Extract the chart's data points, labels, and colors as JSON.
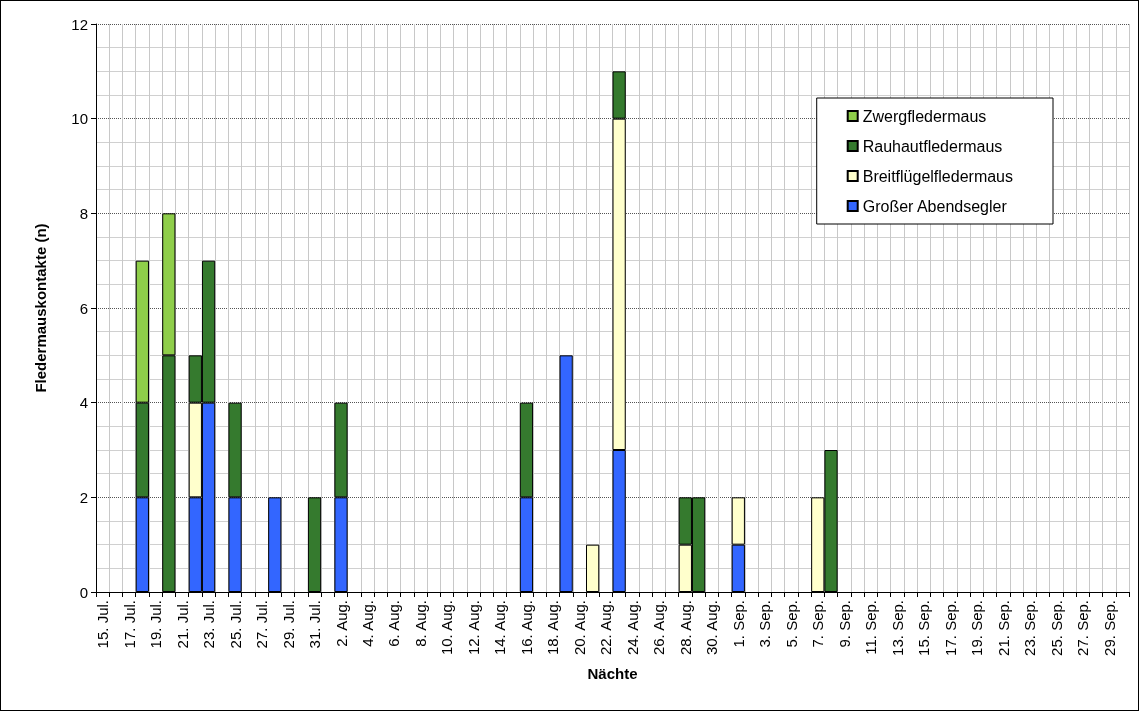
{
  "chart_data": {
    "type": "bar",
    "stacked": true,
    "xlabel": "Nächte",
    "ylabel": "Fledermauskontakte (n)",
    "categories": [
      "15. Jul.",
      null,
      "17. Jul.",
      null,
      "19. Jul.",
      null,
      "21. Jul.",
      null,
      "23. Jul.",
      null,
      "25. Jul.",
      null,
      "27. Jul.",
      null,
      "29. Jul.",
      null,
      "31. Jul.",
      null,
      "2. Aug.",
      null,
      "4. Aug.",
      null,
      "6. Aug.",
      null,
      "8. Aug.",
      null,
      "10. Aug.",
      null,
      "12. Aug.",
      null,
      "14. Aug.",
      null,
      "16. Aug.",
      null,
      "18. Aug.",
      null,
      "20. Aug.",
      null,
      "22. Aug.",
      null,
      "24. Aug.",
      null,
      "26. Aug.",
      null,
      "28. Aug.",
      null,
      "30. Aug.",
      null,
      "1. Sep.",
      null,
      "3. Sep.",
      null,
      "5. Sep.",
      null,
      "7. Sep.",
      null,
      "9. Sep.",
      null,
      "11. Sep.",
      null,
      "13. Sep.",
      null,
      "15. Sep.",
      null,
      "17. Sep.",
      null,
      "19. Sep.",
      null,
      "21. Sep.",
      null,
      "23. Sep.",
      null,
      "25. Sep.",
      null,
      "27. Sep.",
      null,
      "29. Sep.",
      null
    ],
    "series": [
      {
        "name": "Großer Abendsegler",
        "color": "#3366ff",
        "values": [
          null,
          null,
          null,
          2,
          null,
          null,
          null,
          2,
          4,
          null,
          2,
          null,
          null,
          2,
          null,
          null,
          null,
          null,
          2,
          null,
          null,
          null,
          null,
          null,
          null,
          null,
          null,
          null,
          null,
          null,
          null,
          null,
          2,
          null,
          null,
          5,
          null,
          null,
          null,
          3,
          null,
          null,
          null,
          null,
          null,
          null,
          null,
          null,
          1,
          null,
          null,
          null,
          null,
          null,
          null,
          null,
          null,
          null,
          null,
          null,
          null,
          null,
          null,
          null,
          null,
          null,
          null,
          null,
          null,
          null,
          null,
          null,
          null,
          null,
          null,
          null,
          null,
          null
        ]
      },
      {
        "name": "Breitflügelfledermaus",
        "color": "#ffffcc",
        "values": [
          null,
          null,
          null,
          null,
          null,
          null,
          null,
          2,
          null,
          null,
          null,
          null,
          null,
          null,
          null,
          null,
          null,
          null,
          null,
          null,
          null,
          null,
          null,
          null,
          null,
          null,
          null,
          null,
          null,
          null,
          null,
          null,
          null,
          null,
          null,
          null,
          null,
          1,
          null,
          7,
          null,
          null,
          null,
          null,
          1,
          null,
          null,
          null,
          1,
          null,
          null,
          null,
          null,
          null,
          2,
          null,
          null,
          null,
          null,
          null,
          null,
          null,
          null,
          null,
          null,
          null,
          null,
          null,
          null,
          null,
          null,
          null,
          null,
          null,
          null,
          null,
          null,
          null
        ]
      },
      {
        "name": "Rauhautfledermaus",
        "color": "#357a2e",
        "values": [
          null,
          null,
          null,
          2,
          null,
          5,
          null,
          1,
          3,
          null,
          2,
          null,
          null,
          null,
          null,
          null,
          2,
          null,
          2,
          null,
          null,
          null,
          null,
          null,
          null,
          null,
          null,
          null,
          null,
          null,
          null,
          null,
          2,
          null,
          null,
          null,
          null,
          null,
          null,
          1,
          null,
          null,
          null,
          null,
          1,
          2,
          null,
          null,
          null,
          null,
          null,
          null,
          null,
          null,
          null,
          3,
          null,
          null,
          null,
          null,
          null,
          null,
          null,
          null,
          null,
          null,
          null,
          null,
          null,
          null,
          null,
          null,
          null,
          null,
          null,
          null,
          null,
          null
        ]
      },
      {
        "name": "Zwergfledermaus",
        "color": "#8fce4a",
        "values": [
          null,
          null,
          null,
          3,
          null,
          3,
          null,
          null,
          null,
          null,
          null,
          null,
          null,
          null,
          null,
          null,
          null,
          null,
          null,
          null,
          null,
          null,
          null,
          null,
          null,
          null,
          null,
          null,
          null,
          null,
          null,
          null,
          null,
          null,
          null,
          null,
          null,
          null,
          null,
          null,
          null,
          null,
          null,
          null,
          null,
          null,
          null,
          null,
          null,
          null,
          null,
          null,
          null,
          null,
          null,
          null,
          null,
          null,
          null,
          null,
          null,
          null,
          null,
          null,
          null,
          null,
          null,
          null,
          null,
          null,
          null,
          null,
          null,
          null,
          null,
          null,
          null,
          null
        ]
      }
    ],
    "ylim": [
      0,
      12
    ],
    "yticks": [
      0,
      2,
      4,
      6,
      8,
      10,
      12
    ],
    "grid": true,
    "legend": "top right"
  }
}
